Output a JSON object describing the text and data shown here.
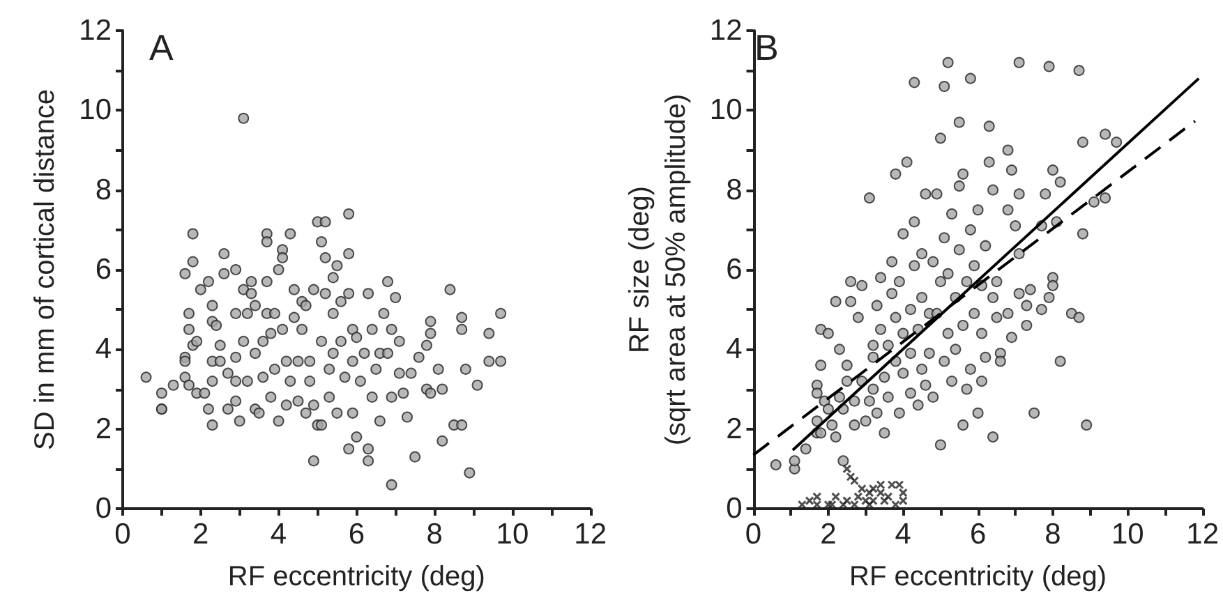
{
  "chart_data": [
    {
      "type": "scatter",
      "title": "A",
      "xlabel": "RF eccentricity (deg)",
      "ylabel": "SD in mm of cortical distance",
      "xlim": [
        0,
        12
      ],
      "ylim": [
        0,
        12
      ],
      "xticks": [
        0,
        {
          "value": 1,
          "label": null
        },
        2,
        {
          "value": 3,
          "label": null
        },
        4,
        {
          "value": 5,
          "label": null
        },
        6,
        {
          "value": 7,
          "label": null
        },
        8,
        {
          "value": 9,
          "label": null
        },
        10,
        {
          "value": 11,
          "label": null
        },
        12
      ],
      "yticks": [
        0,
        {
          "value": 1,
          "label": null
        },
        2,
        {
          "value": 3,
          "label": null
        },
        4,
        {
          "value": 5,
          "label": null
        },
        6,
        {
          "value": 7,
          "label": null
        },
        8,
        {
          "value": 9,
          "label": null
        },
        10,
        {
          "value": 11,
          "label": null
        },
        12
      ],
      "grid": false,
      "series": [
        {
          "color": "#a6a6a6",
          "marker": "circle",
          "x": [
            0.6,
            1.0,
            1.0,
            1.0,
            1.3,
            1.6,
            1.6,
            1.6,
            1.7,
            1.7,
            1.8,
            1.8,
            1.6,
            1.7,
            1.8,
            2.0,
            1.9,
            1.9,
            2.1,
            2.2,
            2.2,
            2.3,
            2.3,
            2.4,
            2.3,
            2.3,
            2.3,
            2.5,
            2.5,
            2.6,
            2.6,
            2.7,
            2.7,
            2.9,
            2.9,
            2.9,
            2.9,
            2.9,
            3.0,
            3.1,
            3.1,
            3.1,
            3.2,
            3.2,
            3.3,
            3.3,
            3.4,
            3.4,
            3.4,
            3.5,
            3.6,
            3.7,
            3.7,
            3.7,
            3.6,
            3.7,
            3.8,
            3.8,
            3.9,
            3.9,
            4.0,
            4.0,
            4.1,
            4.1,
            4.1,
            4.2,
            4.3,
            4.2,
            4.3,
            4.4,
            4.4,
            4.5,
            4.5,
            4.6,
            4.6,
            4.7,
            4.7,
            4.8,
            4.8,
            4.9,
            4.9,
            4.9,
            5.0,
            5.0,
            5.1,
            5.1,
            5.1,
            5.2,
            5.2,
            5.2,
            5.3,
            5.3,
            5.4,
            5.4,
            5.4,
            5.5,
            5.5,
            5.6,
            5.6,
            5.7,
            5.8,
            5.8,
            5.8,
            5.8,
            5.9,
            5.9,
            5.9,
            6.0,
            6.0,
            6.1,
            6.2,
            6.3,
            6.3,
            6.3,
            6.4,
            6.4,
            6.5,
            6.6,
            6.6,
            6.7,
            6.8,
            6.8,
            6.9,
            6.9,
            6.9,
            7.0,
            7.1,
            7.1,
            7.2,
            7.3,
            7.4,
            7.5,
            7.6,
            7.8,
            7.9,
            7.9,
            7.8,
            7.9,
            8.1,
            8.2,
            8.2,
            8.4,
            8.5,
            8.7,
            8.7,
            8.7,
            8.8,
            8.9,
            9.1,
            9.4,
            9.4,
            9.7,
            9.7
          ],
          "values": [
            3.3,
            2.9,
            2.5,
            2.5,
            3.1,
            3.3,
            3.8,
            3.7,
            4.5,
            4.9,
            6.9,
            6.2,
            5.9,
            3.1,
            4.1,
            5.5,
            4.2,
            2.9,
            2.9,
            2.5,
            5.7,
            5.1,
            4.7,
            4.6,
            2.1,
            3.2,
            3.7,
            4.1,
            3.7,
            6.4,
            5.9,
            2.5,
            3.4,
            3.2,
            6.0,
            4.9,
            2.7,
            3.8,
            2.2,
            9.8,
            5.5,
            4.2,
            4.9,
            3.2,
            5.7,
            5.4,
            5.1,
            2.5,
            3.9,
            2.4,
            3.3,
            5.7,
            6.9,
            6.7,
            4.2,
            4.9,
            4.4,
            2.8,
            4.9,
            3.5,
            6.0,
            2.2,
            6.5,
            6.3,
            4.5,
            2.6,
            6.9,
            3.7,
            3.2,
            4.8,
            5.5,
            2.7,
            3.7,
            4.5,
            5.2,
            5.1,
            2.4,
            3.2,
            3.7,
            2.6,
            5.5,
            1.2,
            7.2,
            2.1,
            6.7,
            2.1,
            4.2,
            6.3,
            7.2,
            5.4,
            3.5,
            2.8,
            5.8,
            4.9,
            3.9,
            2.4,
            6.1,
            5.2,
            4.2,
            3.3,
            7.4,
            1.5,
            6.4,
            5.4,
            4.5,
            3.7,
            2.4,
            1.8,
            4.3,
            3.2,
            3.9,
            1.5,
            5.4,
            1.2,
            4.5,
            2.8,
            3.5,
            2.2,
            3.9,
            4.9,
            5.7,
            3.9,
            2.8,
            0.6,
            4.5,
            5.3,
            3.4,
            4.2,
            2.9,
            2.3,
            3.4,
            1.3,
            3.8,
            4.1,
            4.7,
            4.4,
            3.0,
            2.9,
            3.5,
            3.0,
            1.7,
            5.5,
            2.1,
            2.1,
            4.8,
            4.5,
            3.5,
            0.9,
            3.1,
            4.4,
            3.7,
            3.7,
            4.9
          ]
        }
      ]
    },
    {
      "type": "scatter",
      "title": "B",
      "xlabel": "RF eccentricity (deg)",
      "ylabel": "RF size (deg)\n(sqrt area at 50% amplitude)",
      "xlim": [
        0,
        12
      ],
      "ylim": [
        0,
        12
      ],
      "xticks": [
        0,
        {
          "value": 1,
          "label": null
        },
        2,
        {
          "value": 3,
          "label": null
        },
        4,
        {
          "value": 5,
          "label": null
        },
        6,
        {
          "value": 7,
          "label": null
        },
        8,
        {
          "value": 9,
          "label": null
        },
        10,
        {
          "value": 11,
          "label": null
        },
        12
      ],
      "yticks": [
        0,
        {
          "value": 1,
          "label": null
        },
        2,
        {
          "value": 3,
          "label": null
        },
        4,
        {
          "value": 5,
          "label": null
        },
        6,
        {
          "value": 7,
          "label": null
        },
        8,
        {
          "value": 9,
          "label": null
        },
        10,
        {
          "value": 11,
          "label": null
        },
        12
      ],
      "grid": false,
      "series": [
        {
          "color": "#a6a6a6",
          "marker": "circle",
          "x": [
            0.6,
            1.1,
            1.1,
            1.4,
            1.7,
            1.7,
            1.7,
            1.7,
            1.8,
            1.8,
            1.8,
            1.9,
            2.0,
            2.0,
            2.1,
            2.2,
            2.2,
            2.3,
            2.3,
            2.4,
            2.4,
            2.5,
            2.5,
            2.6,
            2.6,
            2.7,
            2.7,
            2.8,
            2.9,
            2.9,
            3.0,
            3.1,
            3.1,
            3.2,
            3.2,
            3.2,
            3.3,
            3.3,
            3.4,
            3.4,
            3.5,
            3.5,
            3.6,
            3.6,
            3.7,
            3.7,
            3.8,
            3.8,
            3.8,
            3.9,
            3.9,
            4.0,
            4.0,
            4.0,
            4.1,
            4.2,
            4.2,
            4.2,
            4.3,
            4.3,
            4.3,
            4.4,
            4.4,
            4.5,
            4.5,
            4.5,
            4.6,
            4.6,
            4.7,
            4.7,
            4.8,
            4.8,
            4.9,
            4.9,
            5.0,
            5.0,
            5.0,
            5.1,
            5.1,
            5.1,
            5.2,
            5.2,
            5.2,
            5.3,
            5.3,
            5.4,
            5.4,
            5.5,
            5.5,
            5.5,
            5.6,
            5.6,
            5.6,
            5.7,
            5.7,
            5.8,
            5.8,
            5.8,
            5.9,
            5.9,
            6.0,
            6.0,
            6.1,
            6.1,
            6.1,
            6.2,
            6.2,
            6.3,
            6.3,
            6.4,
            6.4,
            6.4,
            6.5,
            6.5,
            6.6,
            6.6,
            6.8,
            6.8,
            6.8,
            6.9,
            6.9,
            7.0,
            7.1,
            7.1,
            7.1,
            7.1,
            7.3,
            7.3,
            7.4,
            7.5,
            7.7,
            7.7,
            7.8,
            7.9,
            7.9,
            8.0,
            8.0,
            8.0,
            8.1,
            8.2,
            8.2,
            8.5,
            8.7,
            8.7,
            8.8,
            8.8,
            8.9,
            9.1,
            9.4,
            9.4,
            9.7
          ],
          "values": [
            1.1,
            1.0,
            1.2,
            1.5,
            1.9,
            2.2,
            3.1,
            2.9,
            1.9,
            4.5,
            3.6,
            2.7,
            2.5,
            4.4,
            2.1,
            1.8,
            5.2,
            2.8,
            4.0,
            1.2,
            2.5,
            3.6,
            3.2,
            5.2,
            5.7,
            2.1,
            2.7,
            4.8,
            3.2,
            5.6,
            2.2,
            2.7,
            7.8,
            4.1,
            3.0,
            3.8,
            5.1,
            2.4,
            5.8,
            4.5,
            3.3,
            1.9,
            4.1,
            2.8,
            5.4,
            6.2,
            8.4,
            4.8,
            3.7,
            2.4,
            5.7,
            4.4,
            3.4,
            6.9,
            8.7,
            5.0,
            2.9,
            3.9,
            6.1,
            10.7,
            7.2,
            2.6,
            4.5,
            6.4,
            3.5,
            5.3,
            3.1,
            7.9,
            4.9,
            3.9,
            6.2,
            2.8,
            7.9,
            4.9,
            1.6,
            9.3,
            5.7,
            3.7,
            10.6,
            6.8,
            4.4,
            11.2,
            5.9,
            3.2,
            7.4,
            5.3,
            4.0,
            8.1,
            6.5,
            9.7,
            2.1,
            4.6,
            8.4,
            5.7,
            3.0,
            7.0,
            10.8,
            3.5,
            6.1,
            4.9,
            2.4,
            7.5,
            4.4,
            5.6,
            3.2,
            6.6,
            3.8,
            9.6,
            8.7,
            1.8,
            5.3,
            8.0,
            4.8,
            5.7,
            3.9,
            3.7,
            9.0,
            4.9,
            7.5,
            8.5,
            4.3,
            7.1,
            11.2,
            5.4,
            6.4,
            7.9,
            5.1,
            4.6,
            5.5,
            2.4,
            5.0,
            7.1,
            7.9,
            5.3,
            11.1,
            5.8,
            8.5,
            5.6,
            7.2,
            8.2,
            3.7,
            4.9,
            11.0,
            4.8,
            9.2,
            6.9,
            2.1,
            7.7,
            7.8,
            9.4,
            9.2
          ]
        },
        {
          "color": "#222222",
          "marker": "cross",
          "x": [
            2.5,
            2.6,
            2.7,
            2.9,
            3.2,
            3.4,
            3.7,
            3.9,
            4.0,
            4.0,
            3.8,
            1.5,
            1.7,
            1.7,
            2.0,
            2.2,
            2.4,
            2.5,
            2.7,
            2.8,
            3.0,
            3.1,
            3.2,
            3.4,
            3.5,
            3.6,
            2.1,
            3.1,
            1.3
          ],
          "values": [
            1.0,
            0.8,
            0.7,
            0.5,
            0.5,
            0.6,
            0.6,
            0.6,
            0.4,
            0.2,
            0.1,
            0.2,
            0.3,
            0.1,
            0.1,
            0.3,
            0.1,
            0.2,
            0.1,
            0.3,
            0.2,
            0.4,
            0.2,
            0.4,
            0.2,
            0.3,
            0.1,
            0.1,
            0.1
          ]
        },
        {
          "type": "line",
          "color": "#000000",
          "line_style": "solid",
          "marker": "none",
          "x": [
            1.05,
            11.9
          ],
          "values": [
            1.47,
            10.8
          ]
        },
        {
          "type": "line",
          "color": "#000000",
          "line_style": "dashed",
          "marker": "none",
          "x": [
            0,
            11.8
          ],
          "values": [
            1.35,
            9.73
          ]
        }
      ]
    }
  ]
}
